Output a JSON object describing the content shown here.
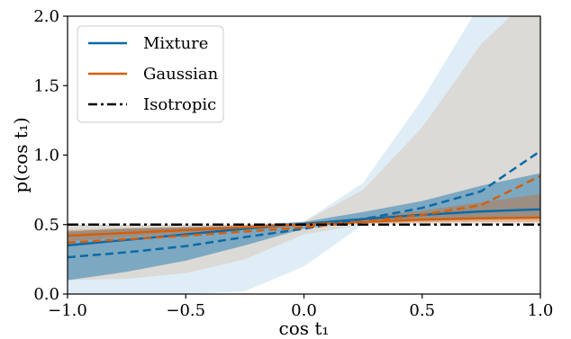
{
  "chart_data": {
    "type": "line",
    "xlabel": "cos t₁",
    "ylabel": "p(cos t₁)",
    "xlim": [
      -1.0,
      1.0
    ],
    "ylim": [
      0.0,
      2.0
    ],
    "xticks": [
      -1.0,
      -0.5,
      0.0,
      0.5,
      1.0
    ],
    "xtick_labels": [
      "−1.0",
      "−0.5",
      "0.0",
      "0.5",
      "1.0"
    ],
    "yticks": [
      0.0,
      0.5,
      1.0,
      1.5,
      2.0
    ],
    "ytick_labels": [
      "0.0",
      "0.5",
      "1.0",
      "1.5",
      "2.0"
    ],
    "grid": false,
    "legend_position": "top-left",
    "legend": [
      {
        "label": "Mixture",
        "color": "#0b6aa8",
        "style": "solid"
      },
      {
        "label": "Gaussian",
        "color": "#d35f0d",
        "style": "solid"
      },
      {
        "label": "Isotropic",
        "color": "#000000",
        "style": "dashdot"
      }
    ],
    "series": [
      {
        "name": "Mixture",
        "color": "#0b6aa8",
        "x": [
          -1.0,
          -0.75,
          -0.5,
          -0.25,
          0.0,
          0.25,
          0.5,
          0.75,
          1.0
        ],
        "median": [
          0.35,
          0.39,
          0.43,
          0.47,
          0.505,
          0.54,
          0.57,
          0.595,
          0.61
        ],
        "dashed": [
          0.265,
          0.3,
          0.345,
          0.41,
          0.47,
          0.54,
          0.62,
          0.74,
          1.03
        ],
        "band_inner_lower": [
          0.1,
          0.16,
          0.24,
          0.35,
          0.47,
          0.53,
          0.54,
          0.545,
          0.55
        ],
        "band_inner_upper": [
          0.45,
          0.47,
          0.48,
          0.49,
          0.52,
          0.59,
          0.67,
          0.78,
          0.87
        ],
        "band_outer_lower": [
          0.0,
          0.0,
          0.0,
          0.02,
          0.2,
          0.5,
          0.52,
          0.53,
          0.54
        ],
        "band_outer_upper": [
          0.5,
          0.5,
          0.5,
          0.5,
          0.52,
          0.8,
          1.4,
          2.1,
          2.5
        ]
      },
      {
        "name": "Gaussian",
        "color": "#d35f0d",
        "x": [
          -1.0,
          -0.75,
          -0.5,
          -0.25,
          0.0,
          0.25,
          0.5,
          0.75,
          1.0
        ],
        "median": [
          0.42,
          0.44,
          0.46,
          0.48,
          0.5,
          0.52,
          0.535,
          0.545,
          0.55
        ],
        "dashed": [
          0.37,
          0.395,
          0.42,
          0.45,
          0.48,
          0.52,
          0.57,
          0.64,
          0.85
        ],
        "band_inner_lower": [
          0.38,
          0.41,
          0.44,
          0.47,
          0.5,
          0.51,
          0.515,
          0.52,
          0.52
        ],
        "band_inner_upper": [
          0.46,
          0.475,
          0.485,
          0.495,
          0.51,
          0.55,
          0.6,
          0.66,
          0.72
        ],
        "band_outer_lower": [
          0.1,
          0.11,
          0.15,
          0.25,
          0.43,
          0.5,
          0.5,
          0.5,
          0.5
        ],
        "band_outer_upper": [
          0.5,
          0.5,
          0.5,
          0.5,
          0.52,
          0.75,
          1.2,
          1.8,
          2.2
        ]
      },
      {
        "name": "Isotropic",
        "color": "#000000",
        "x": [
          -1.0,
          1.0
        ],
        "values": [
          0.5,
          0.5
        ]
      }
    ]
  }
}
